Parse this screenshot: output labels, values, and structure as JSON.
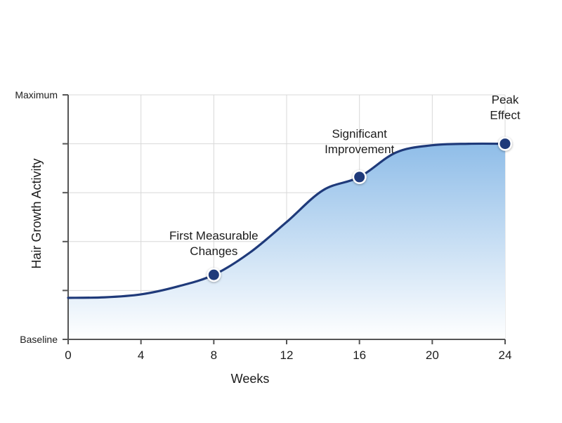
{
  "chart_data": {
    "type": "area",
    "xlabel": "Weeks",
    "ylabel": "Hair Growth Activity",
    "xlim": [
      0,
      24
    ],
    "ylim": [
      0,
      5
    ],
    "x_ticks": [
      0,
      4,
      8,
      12,
      16,
      20,
      24
    ],
    "y_tick_labels": {
      "0": "Baseline",
      "5": "Maximum"
    },
    "grid": true,
    "colors": {
      "line": "#1f3a7a",
      "fill_top": "#8fbde8",
      "fill_bottom": "#ffffff",
      "grid": "#d8d8d8",
      "axis": "#555555"
    },
    "series": [
      {
        "x": [
          0,
          2,
          4,
          6,
          8,
          10,
          12,
          14,
          16,
          18,
          20,
          22,
          24
        ],
        "y": [
          0.85,
          0.86,
          0.92,
          1.08,
          1.32,
          1.78,
          2.4,
          3.05,
          3.32,
          3.82,
          3.97,
          4.0,
          4.0
        ]
      }
    ],
    "markers": [
      {
        "x": 8,
        "y": 1.32,
        "label": [
          "First Measurable",
          "Changes"
        ]
      },
      {
        "x": 16,
        "y": 3.32,
        "label": [
          "Significant",
          "Improvement"
        ]
      },
      {
        "x": 24,
        "y": 4.0,
        "label": [
          "Peak",
          "Effect"
        ]
      }
    ]
  }
}
